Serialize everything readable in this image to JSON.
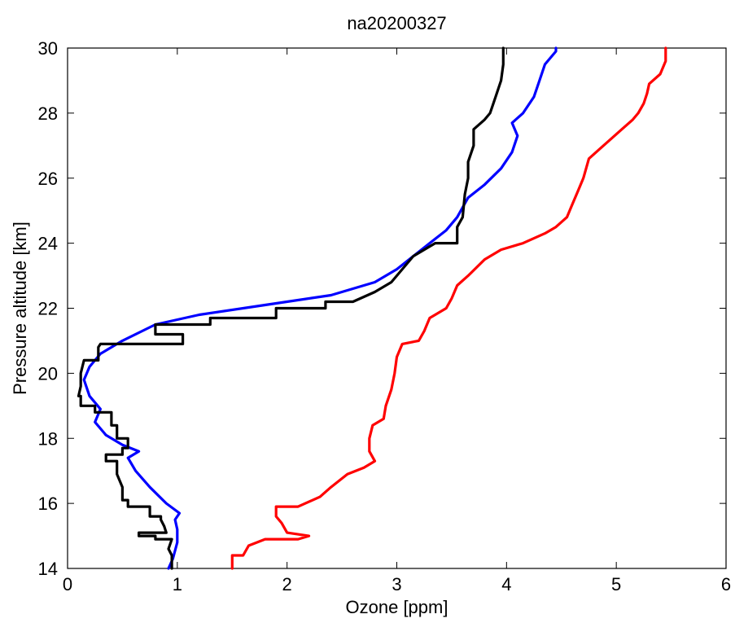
{
  "chart_data": {
    "type": "line",
    "title": "na20200327",
    "xlabel": "Ozone [ppm]",
    "ylabel": "Pressure altitude [km]",
    "xlim": [
      0,
      6
    ],
    "ylim": [
      14,
      30
    ],
    "xticks": [
      "0",
      "1",
      "2",
      "3",
      "4",
      "5",
      "6"
    ],
    "yticks": [
      "14",
      "16",
      "18",
      "20",
      "22",
      "24",
      "26",
      "28",
      "30"
    ],
    "grid": false,
    "legend": "none",
    "series": [
      {
        "color": "#0000ff",
        "style": "smooth",
        "points": [
          [
            0.92,
            14.0
          ],
          [
            0.96,
            14.3
          ],
          [
            1.0,
            14.8
          ],
          [
            1.0,
            15.2
          ],
          [
            0.98,
            15.5
          ],
          [
            1.02,
            15.7
          ],
          [
            0.9,
            16.0
          ],
          [
            0.75,
            16.5
          ],
          [
            0.62,
            17.0
          ],
          [
            0.55,
            17.4
          ],
          [
            0.65,
            17.6
          ],
          [
            0.5,
            17.8
          ],
          [
            0.35,
            18.1
          ],
          [
            0.25,
            18.5
          ],
          [
            0.3,
            18.9
          ],
          [
            0.2,
            19.3
          ],
          [
            0.15,
            19.8
          ],
          [
            0.2,
            20.2
          ],
          [
            0.3,
            20.6
          ],
          [
            0.5,
            21.0
          ],
          [
            0.8,
            21.5
          ],
          [
            1.2,
            21.8
          ],
          [
            1.8,
            22.1
          ],
          [
            2.4,
            22.4
          ],
          [
            2.8,
            22.8
          ],
          [
            3.0,
            23.2
          ],
          [
            3.15,
            23.6
          ],
          [
            3.3,
            24.0
          ],
          [
            3.45,
            24.4
          ],
          [
            3.55,
            24.8
          ],
          [
            3.65,
            25.4
          ],
          [
            3.8,
            25.8
          ],
          [
            3.95,
            26.3
          ],
          [
            4.05,
            26.8
          ],
          [
            4.1,
            27.3
          ],
          [
            4.05,
            27.7
          ],
          [
            4.15,
            28.0
          ],
          [
            4.25,
            28.5
          ],
          [
            4.3,
            29.0
          ],
          [
            4.35,
            29.5
          ],
          [
            4.45,
            29.9
          ],
          [
            4.45,
            30.0
          ]
        ]
      },
      {
        "color": "#000000",
        "style": "step",
        "points": [
          [
            0.95,
            14.0
          ],
          [
            0.95,
            14.4
          ],
          [
            0.92,
            14.6
          ],
          [
            0.95,
            14.9
          ],
          [
            0.8,
            14.9
          ],
          [
            0.8,
            15.0
          ],
          [
            0.65,
            15.0
          ],
          [
            0.65,
            15.1
          ],
          [
            0.9,
            15.1
          ],
          [
            0.88,
            15.3
          ],
          [
            0.85,
            15.5
          ],
          [
            0.85,
            15.6
          ],
          [
            0.75,
            15.6
          ],
          [
            0.75,
            15.9
          ],
          [
            0.55,
            15.9
          ],
          [
            0.55,
            16.1
          ],
          [
            0.5,
            16.1
          ],
          [
            0.5,
            16.5
          ],
          [
            0.45,
            16.9
          ],
          [
            0.45,
            17.3
          ],
          [
            0.35,
            17.3
          ],
          [
            0.35,
            17.5
          ],
          [
            0.5,
            17.5
          ],
          [
            0.5,
            17.7
          ],
          [
            0.55,
            17.7
          ],
          [
            0.55,
            18.0
          ],
          [
            0.45,
            18.0
          ],
          [
            0.45,
            18.4
          ],
          [
            0.4,
            18.4
          ],
          [
            0.4,
            18.8
          ],
          [
            0.25,
            18.8
          ],
          [
            0.25,
            19.0
          ],
          [
            0.12,
            19.0
          ],
          [
            0.12,
            19.3
          ],
          [
            0.1,
            19.3
          ],
          [
            0.12,
            19.6
          ],
          [
            0.12,
            20.0
          ],
          [
            0.15,
            20.4
          ],
          [
            0.28,
            20.4
          ],
          [
            0.28,
            20.8
          ],
          [
            0.3,
            20.9
          ],
          [
            1.05,
            20.9
          ],
          [
            1.05,
            21.2
          ],
          [
            0.8,
            21.2
          ],
          [
            0.8,
            21.5
          ],
          [
            1.3,
            21.5
          ],
          [
            1.3,
            21.7
          ],
          [
            1.9,
            21.7
          ],
          [
            1.9,
            22.0
          ],
          [
            2.35,
            22.0
          ],
          [
            2.35,
            22.2
          ],
          [
            2.6,
            22.2
          ],
          [
            2.8,
            22.5
          ],
          [
            2.95,
            22.8
          ],
          [
            3.05,
            23.2
          ],
          [
            3.15,
            23.6
          ],
          [
            3.35,
            24.0
          ],
          [
            3.55,
            24.0
          ],
          [
            3.55,
            24.5
          ],
          [
            3.6,
            24.8
          ],
          [
            3.62,
            25.5
          ],
          [
            3.65,
            26.0
          ],
          [
            3.65,
            26.5
          ],
          [
            3.7,
            27.0
          ],
          [
            3.7,
            27.5
          ],
          [
            3.8,
            27.8
          ],
          [
            3.85,
            28.0
          ],
          [
            3.9,
            28.5
          ],
          [
            3.95,
            29.0
          ],
          [
            3.97,
            29.5
          ],
          [
            3.97,
            30.0
          ]
        ]
      },
      {
        "color": "#ff0000",
        "style": "step",
        "points": [
          [
            1.5,
            14.0
          ],
          [
            1.5,
            14.4
          ],
          [
            1.6,
            14.4
          ],
          [
            1.65,
            14.7
          ],
          [
            1.8,
            14.9
          ],
          [
            2.1,
            14.9
          ],
          [
            2.2,
            15.0
          ],
          [
            2.0,
            15.1
          ],
          [
            1.95,
            15.4
          ],
          [
            1.9,
            15.6
          ],
          [
            1.9,
            15.9
          ],
          [
            2.1,
            15.9
          ],
          [
            2.3,
            16.2
          ],
          [
            2.4,
            16.5
          ],
          [
            2.55,
            16.9
          ],
          [
            2.7,
            17.1
          ],
          [
            2.8,
            17.3
          ],
          [
            2.75,
            17.6
          ],
          [
            2.75,
            18.0
          ],
          [
            2.78,
            18.4
          ],
          [
            2.88,
            18.6
          ],
          [
            2.9,
            19.0
          ],
          [
            2.95,
            19.5
          ],
          [
            2.98,
            20.0
          ],
          [
            3.0,
            20.5
          ],
          [
            3.05,
            20.9
          ],
          [
            3.2,
            21.0
          ],
          [
            3.25,
            21.3
          ],
          [
            3.3,
            21.7
          ],
          [
            3.45,
            22.0
          ],
          [
            3.5,
            22.3
          ],
          [
            3.55,
            22.7
          ],
          [
            3.65,
            23.0
          ],
          [
            3.8,
            23.5
          ],
          [
            3.95,
            23.8
          ],
          [
            4.15,
            24.0
          ],
          [
            4.35,
            24.3
          ],
          [
            4.45,
            24.5
          ],
          [
            4.55,
            24.8
          ],
          [
            4.6,
            25.2
          ],
          [
            4.65,
            25.6
          ],
          [
            4.7,
            26.0
          ],
          [
            4.75,
            26.6
          ],
          [
            4.85,
            26.9
          ],
          [
            4.95,
            27.2
          ],
          [
            5.05,
            27.5
          ],
          [
            5.15,
            27.8
          ],
          [
            5.2,
            28.0
          ],
          [
            5.25,
            28.3
          ],
          [
            5.28,
            28.6
          ],
          [
            5.3,
            28.9
          ],
          [
            5.4,
            29.2
          ],
          [
            5.45,
            29.6
          ],
          [
            5.45,
            30.0
          ]
        ]
      }
    ]
  }
}
